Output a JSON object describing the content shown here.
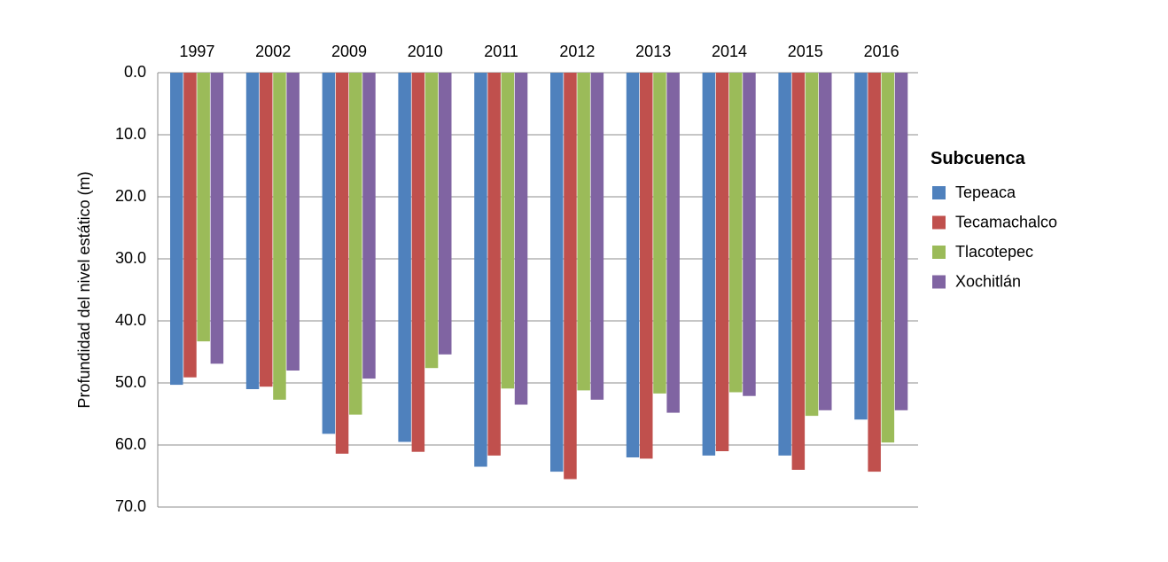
{
  "chart_data": {
    "type": "bar",
    "title": "",
    "xlabel": "",
    "ylabel": "Profundidad del nivel estático (m)",
    "categories": [
      "1997",
      "2002",
      "2009",
      "2010",
      "2011",
      "2012",
      "2013",
      "2014",
      "2015",
      "2016"
    ],
    "y_ticks": [
      "0.0",
      "10.0",
      "20.0",
      "30.0",
      "40.0",
      "50.0",
      "60.0",
      "70.0"
    ],
    "ylim": [
      0,
      70
    ],
    "y_inverted": true,
    "x_axis_position": "top",
    "grid": true,
    "legend_title": "Subcuenca",
    "legend_position": "right",
    "series": [
      {
        "name": "Tepeaca",
        "color": "#4f81bd",
        "values": [
          50.3,
          51.0,
          58.2,
          59.5,
          63.5,
          64.3,
          62.0,
          61.7,
          61.7,
          55.9
        ]
      },
      {
        "name": "Tecamachalco",
        "color": "#c0504d",
        "values": [
          49.1,
          50.6,
          61.4,
          61.1,
          61.7,
          65.5,
          62.2,
          61.0,
          64.0,
          64.3
        ]
      },
      {
        "name": "Tlacotepec",
        "color": "#9bbb59",
        "values": [
          43.3,
          52.7,
          55.1,
          47.6,
          50.9,
          51.2,
          51.7,
          51.5,
          55.3,
          59.6
        ]
      },
      {
        "name": "Xochitlán",
        "color": "#8064a2",
        "values": [
          46.9,
          48.0,
          49.3,
          45.4,
          53.5,
          52.7,
          54.8,
          52.1,
          54.4,
          54.4
        ]
      }
    ]
  }
}
